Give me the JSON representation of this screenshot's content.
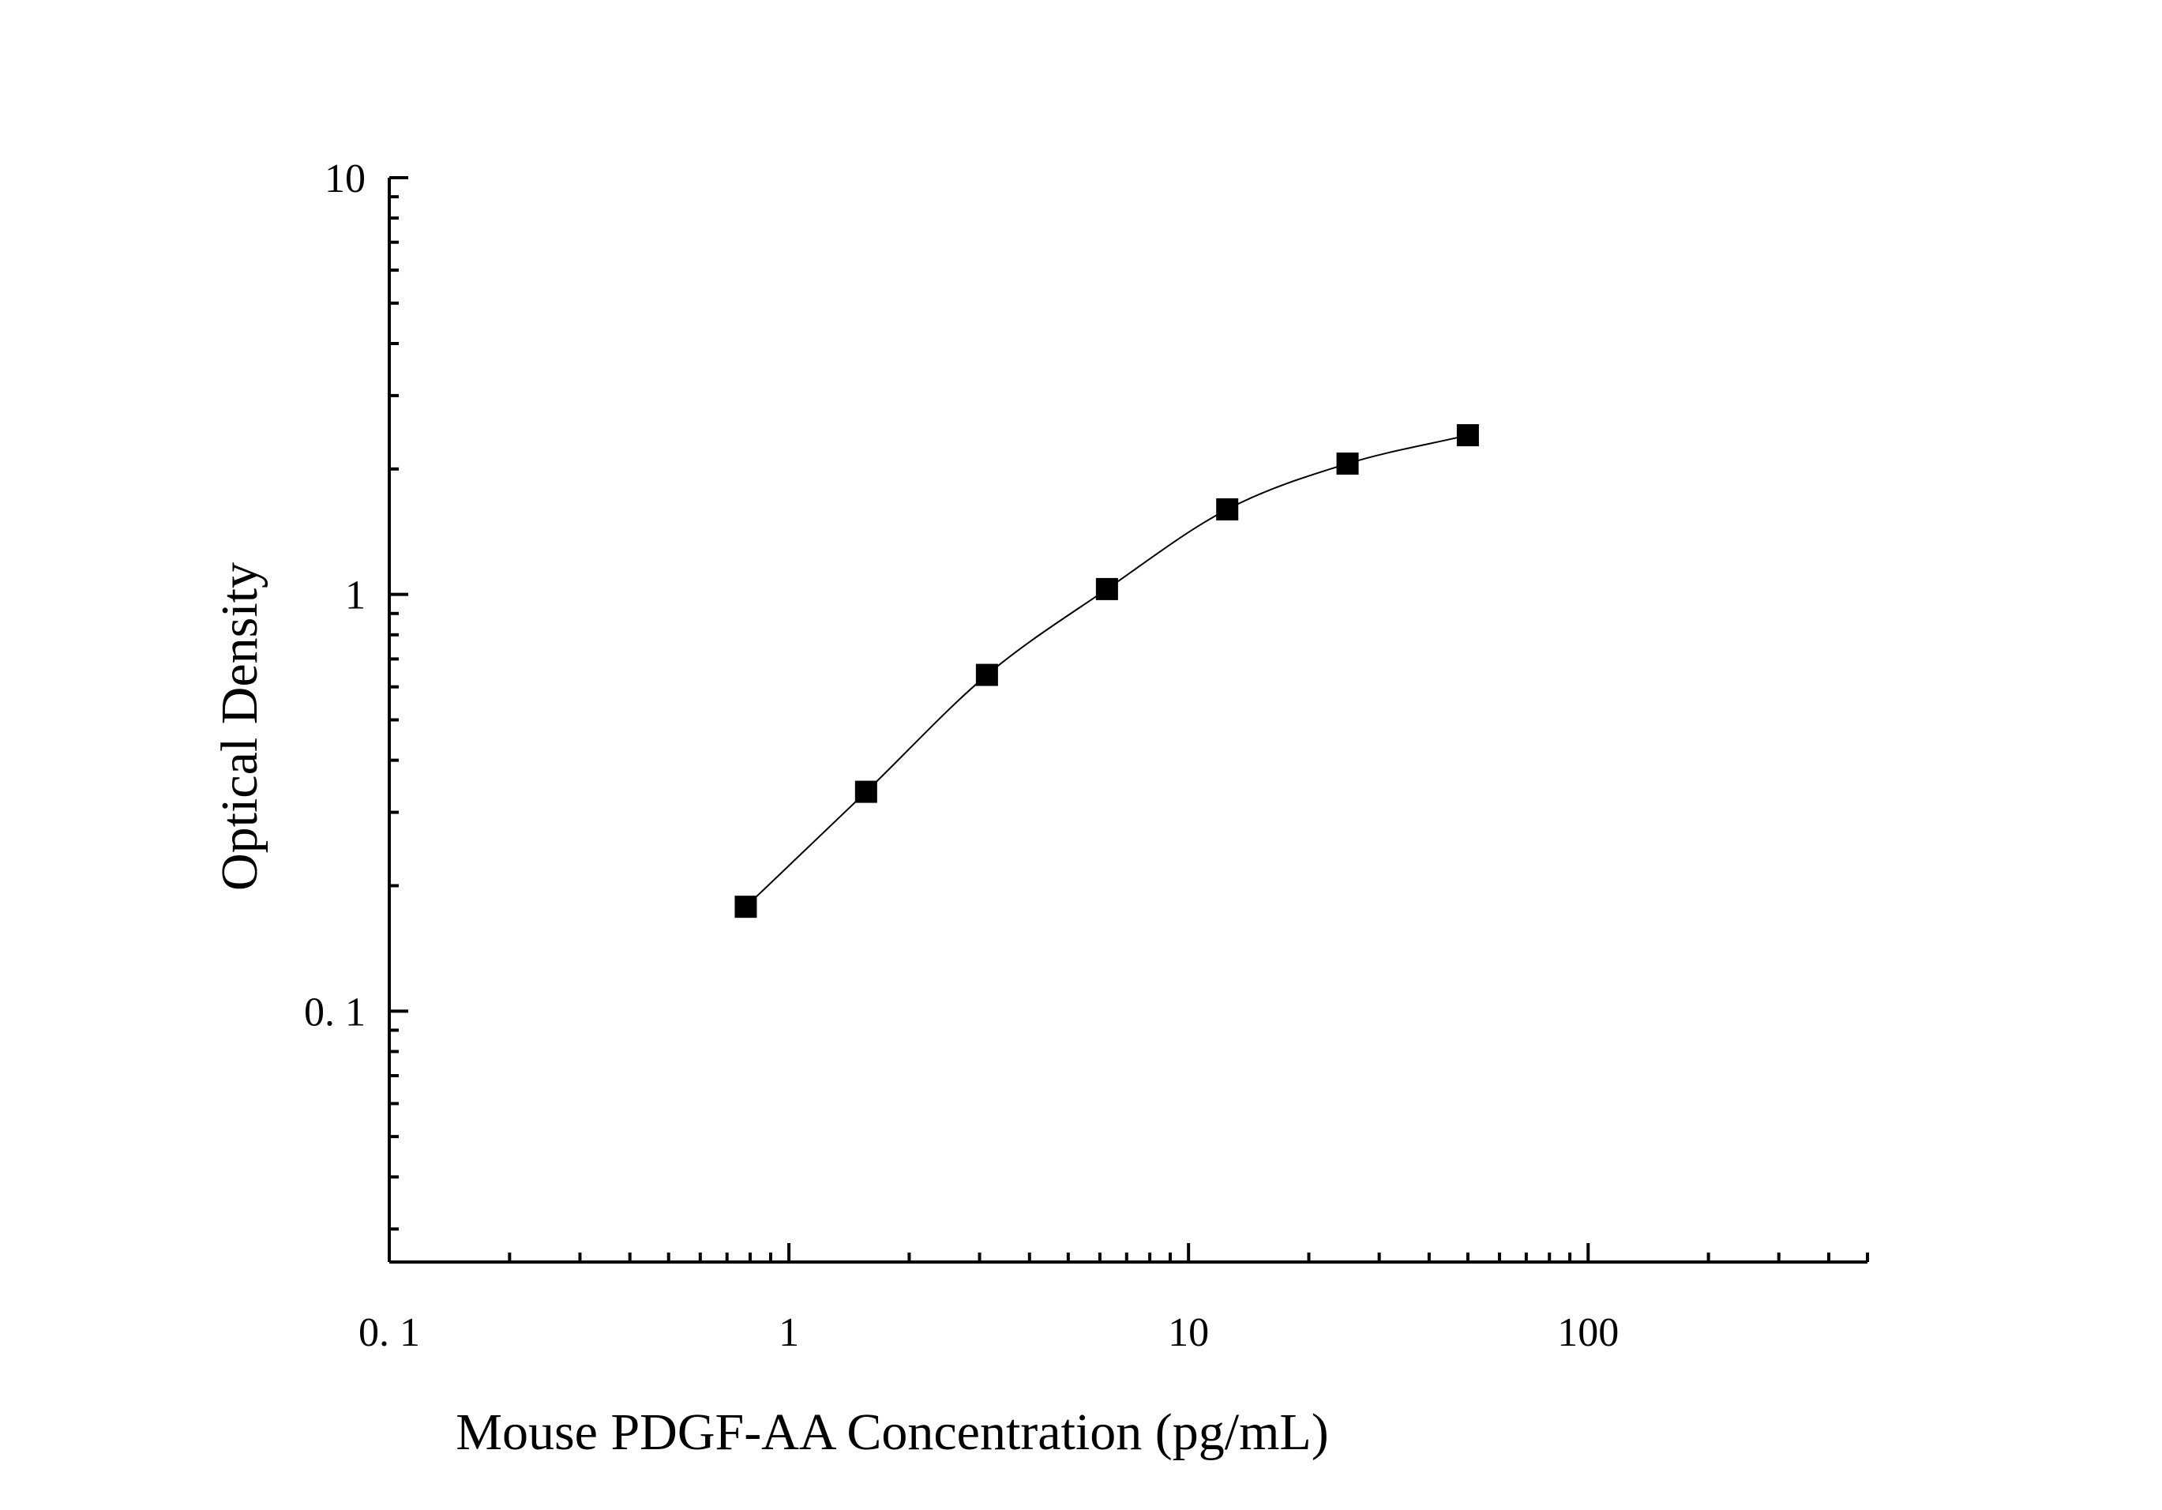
{
  "chart_data": {
    "type": "scatter",
    "title": "",
    "xlabel": "Mouse PDGF-AA Concentration (pg/mL)",
    "ylabel": "Optical Density",
    "x_scale": "log",
    "y_scale": "log",
    "xlim": [
      0.1,
      500
    ],
    "ylim": [
      0.025,
      10
    ],
    "x_ticks": [
      {
        "value": 0.1,
        "label": "0. 1"
      },
      {
        "value": 1,
        "label": "1"
      },
      {
        "value": 10,
        "label": "10"
      },
      {
        "value": 100,
        "label": "100"
      }
    ],
    "y_ticks": [
      {
        "value": 0.1,
        "label": "0. 1"
      },
      {
        "value": 1,
        "label": "1"
      },
      {
        "value": 10,
        "label": "10"
      }
    ],
    "grid": false,
    "series": [
      {
        "marker": "square",
        "color": "#000000",
        "x": [
          0.78,
          1.56,
          3.13,
          6.25,
          12.5,
          25,
          50
        ],
        "y": [
          0.178,
          0.336,
          0.641,
          1.03,
          1.6,
          2.06,
          2.41
        ]
      }
    ],
    "fit_curve": {
      "color": "#000000",
      "type": "four-parameter logistic"
    }
  }
}
